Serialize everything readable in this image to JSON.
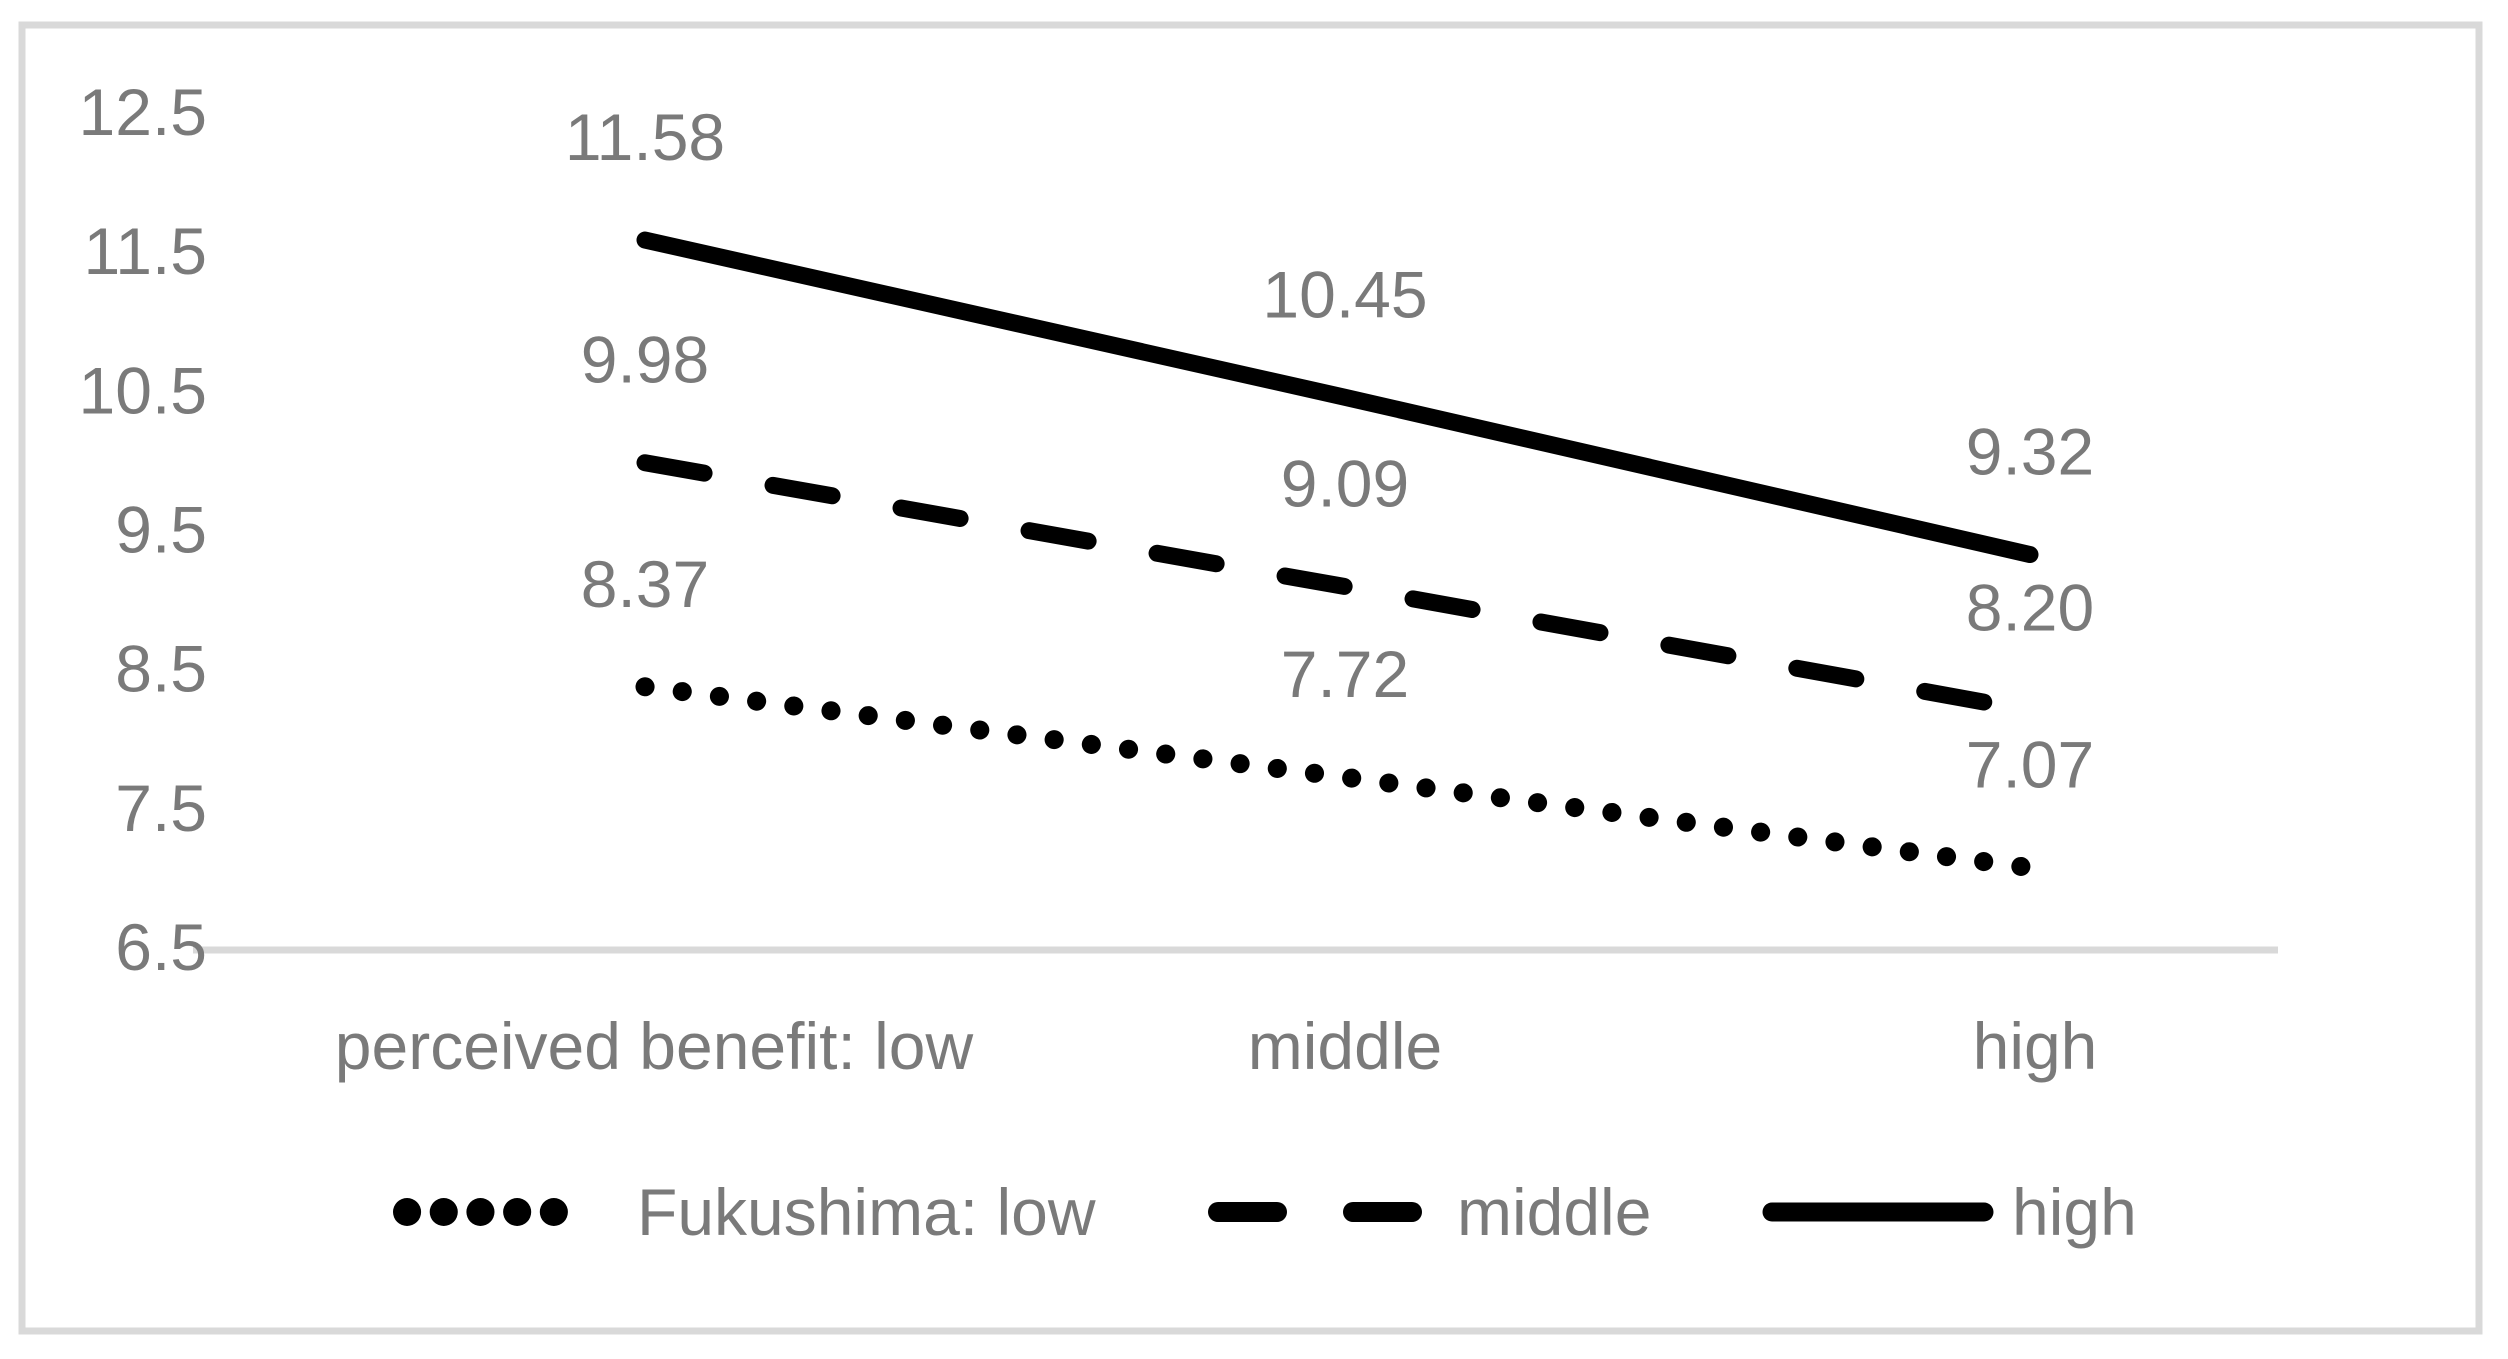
{
  "chart_data": {
    "type": "line",
    "title": "",
    "xlabel": "",
    "ylabel": "",
    "categories": [
      "perceived benefit: low",
      "middle",
      "high"
    ],
    "series": [
      {
        "name": "Fukushima: low",
        "line_style": "dotted",
        "color": "#000000",
        "values": [
          8.37,
          7.72,
          7.07
        ],
        "labels": [
          "8.37",
          "7.72",
          "7.07"
        ]
      },
      {
        "name": "middle",
        "line_style": "dashed",
        "color": "#000000",
        "values": [
          9.98,
          9.09,
          8.2
        ],
        "labels": [
          "9.98",
          "9.09",
          "8.20"
        ]
      },
      {
        "name": "high",
        "line_style": "solid",
        "color": "#000000",
        "values": [
          11.58,
          10.45,
          9.32
        ],
        "labels": [
          "11.58",
          "10.45",
          "9.32"
        ]
      }
    ],
    "y_axis": {
      "min": 6.5,
      "max": 12.5,
      "step": 1.0,
      "ticks": [
        "12.5",
        "11.5",
        "10.5",
        "9.5",
        "8.5",
        "7.5",
        "6.5"
      ]
    },
    "legend_position": "bottom",
    "grid": false,
    "data_labels_shown": true,
    "colors": {
      "series_lines": "#000000",
      "text": "#7a7a7a",
      "axis_and_border": "#d9d9d9",
      "background": "#ffffff"
    }
  }
}
